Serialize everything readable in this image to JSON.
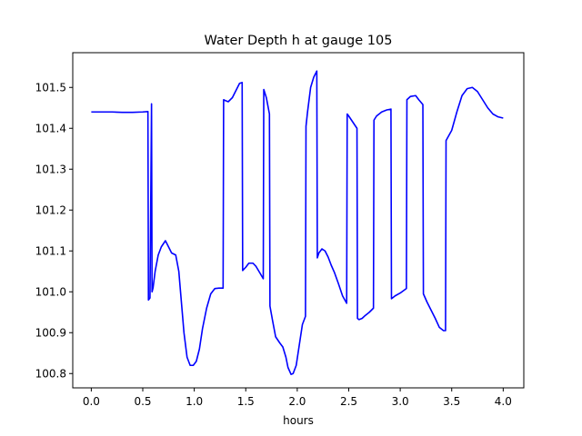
{
  "chart_data": {
    "type": "line",
    "title": "Water Depth h at gauge 105",
    "xlabel": "hours",
    "ylabel": "",
    "xlim": [
      -0.18,
      4.2
    ],
    "ylim": [
      100.765,
      101.585
    ],
    "xticks": [
      0.0,
      0.5,
      1.0,
      1.5,
      2.0,
      2.5,
      3.0,
      3.5,
      4.0
    ],
    "xtick_labels": [
      "0.0",
      "0.5",
      "1.0",
      "1.5",
      "2.0",
      "2.5",
      "3.0",
      "3.5",
      "4.0"
    ],
    "yticks": [
      100.8,
      100.9,
      101.0,
      101.1,
      101.2,
      101.3,
      101.4,
      101.5
    ],
    "ytick_labels": [
      "100.8",
      "100.9",
      "101.0",
      "101.1",
      "101.2",
      "101.3",
      "101.4",
      "101.5"
    ],
    "grid": false,
    "series": [
      {
        "color": "#0000ff",
        "x": [
          0.0,
          0.1,
          0.2,
          0.3,
          0.4,
          0.5,
          0.55,
          0.555,
          0.57,
          0.585,
          0.59,
          0.6,
          0.62,
          0.65,
          0.68,
          0.72,
          0.75,
          0.78,
          0.82,
          0.85,
          0.87,
          0.9,
          0.93,
          0.96,
          0.99,
          1.02,
          1.05,
          1.08,
          1.12,
          1.16,
          1.2,
          1.24,
          1.28,
          1.285,
          1.3,
          1.33,
          1.37,
          1.4,
          1.44,
          1.465,
          1.47,
          1.5,
          1.53,
          1.57,
          1.6,
          1.64,
          1.67,
          1.675,
          1.7,
          1.73,
          1.735,
          1.76,
          1.79,
          1.83,
          1.86,
          1.89,
          1.91,
          1.94,
          1.96,
          1.99,
          2.02,
          2.05,
          2.08,
          2.085,
          2.1,
          2.13,
          2.16,
          2.19,
          2.195,
          2.21,
          2.24,
          2.27,
          2.3,
          2.33,
          2.36,
          2.4,
          2.44,
          2.48,
          2.485,
          2.5,
          2.54,
          2.58,
          2.585,
          2.6,
          2.63,
          2.66,
          2.7,
          2.74,
          2.745,
          2.77,
          2.82,
          2.87,
          2.91,
          2.915,
          2.95,
          3.0,
          3.06,
          3.065,
          3.1,
          3.15,
          3.18,
          3.22,
          3.225,
          3.26,
          3.3,
          3.34,
          3.38,
          3.42,
          3.44,
          3.445,
          3.5,
          3.55,
          3.6,
          3.65,
          3.7,
          3.75,
          3.8,
          3.85,
          3.9,
          3.95,
          4.0
        ],
        "y": [
          101.44,
          101.44,
          101.44,
          101.439,
          101.439,
          101.44,
          101.441,
          100.98,
          100.985,
          101.46,
          101.0,
          101.01,
          101.05,
          101.09,
          101.11,
          101.125,
          101.11,
          101.095,
          101.09,
          101.05,
          100.99,
          100.9,
          100.84,
          100.82,
          100.82,
          100.83,
          100.86,
          100.91,
          100.96,
          100.995,
          101.008,
          101.009,
          101.009,
          101.47,
          101.468,
          101.465,
          101.475,
          101.49,
          101.51,
          101.512,
          101.052,
          101.06,
          101.07,
          101.07,
          101.062,
          101.045,
          101.032,
          101.495,
          101.475,
          101.435,
          100.965,
          100.93,
          100.89,
          100.875,
          100.865,
          100.84,
          100.815,
          100.798,
          100.8,
          100.82,
          100.87,
          100.92,
          100.94,
          101.405,
          101.44,
          101.5,
          101.525,
          101.54,
          101.083,
          101.095,
          101.105,
          101.1,
          101.085,
          101.065,
          101.048,
          101.02,
          100.99,
          100.972,
          101.435,
          101.43,
          101.415,
          101.4,
          100.935,
          100.932,
          100.935,
          100.942,
          100.95,
          100.96,
          101.42,
          101.43,
          101.44,
          101.445,
          101.447,
          100.983,
          100.99,
          100.997,
          101.008,
          101.47,
          101.478,
          101.48,
          101.47,
          101.458,
          100.995,
          100.975,
          100.955,
          100.935,
          100.913,
          100.905,
          100.905,
          101.37,
          101.395,
          101.44,
          101.48,
          101.497,
          101.5,
          101.49,
          101.47,
          101.45,
          101.435,
          101.428,
          101.425
        ]
      }
    ]
  }
}
